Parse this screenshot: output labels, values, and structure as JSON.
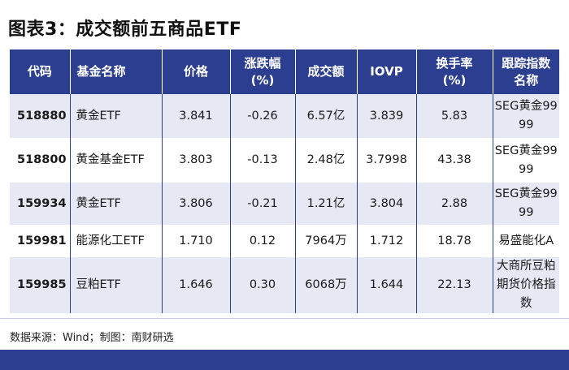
{
  "title": "图表3：成交额前五商品ETF",
  "table": {
    "headers": {
      "code": "代码",
      "name": "基金名称",
      "price": "价格",
      "change_line1": "涨跌幅",
      "change_line2": "(%)",
      "volume": "成交额",
      "iovp": "IOVP",
      "turnover_line1": "换手率",
      "turnover_line2": "(%)",
      "index_line1": "跟踪指数",
      "index_line2": "名称"
    },
    "rows": [
      {
        "code": "518880",
        "name": "黄金ETF",
        "price": "3.841",
        "change": "-0.26",
        "volume": "6.57亿",
        "iovp": "3.839",
        "turnover": "5.83",
        "index": "SEG黄金9999"
      },
      {
        "code": "518800",
        "name": "黄金基金ETF",
        "price": "3.803",
        "change": "-0.13",
        "volume": "2.48亿",
        "iovp": "3.7998",
        "turnover": "43.38",
        "index": "SEG黄金9999"
      },
      {
        "code": "159934",
        "name": "黄金ETF",
        "price": "3.806",
        "change": "-0.21",
        "volume": "1.21亿",
        "iovp": "3.804",
        "turnover": "2.88",
        "index": "SEG黄金9999"
      },
      {
        "code": "159981",
        "name": "能源化工ETF",
        "price": "1.710",
        "change": "0.12",
        "volume": "7964万",
        "iovp": "1.712",
        "turnover": "18.78",
        "index": "易盛能化A"
      },
      {
        "code": "159985",
        "name": "豆粕ETF",
        "price": "1.646",
        "change": "0.30",
        "volume": "6068万",
        "iovp": "1.644",
        "turnover": "22.13",
        "index": "大商所豆粕期货价格指数"
      }
    ]
  },
  "source": "数据来源：Wind；制图：南财研选",
  "colors": {
    "header_bg": "#2c3e8f",
    "row_alt_bg": "#e6e9f3"
  }
}
